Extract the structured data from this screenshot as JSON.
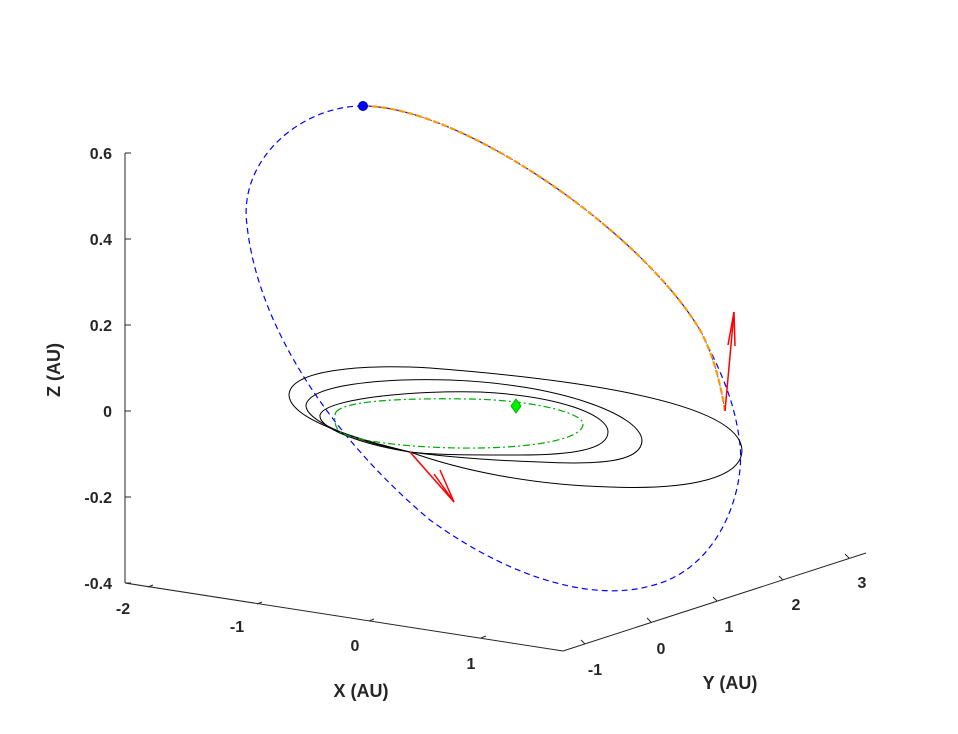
{
  "chart_data": {
    "type": "line",
    "view": "3d",
    "grid": false,
    "legend": "none",
    "axes": {
      "x": {
        "label": "X (AU)",
        "ticks": [
          "-2",
          "-1",
          "0",
          "1"
        ],
        "range": [
          -2.2,
          1.8
        ]
      },
      "y": {
        "label": "Y (AU)",
        "ticks": [
          "-1",
          "0",
          "1",
          "2",
          "3"
        ],
        "range": [
          -1.3,
          3.3
        ]
      },
      "z": {
        "label": "Z (AU)",
        "ticks": [
          "0.6",
          "0.4",
          "0.2",
          "0",
          "-0.2",
          "-0.4"
        ],
        "range": [
          -0.4,
          0.6
        ]
      }
    },
    "series": [
      {
        "style": "dashed",
        "color": "#0000ff"
      },
      {
        "style": "dashed",
        "color": "#ffa500"
      },
      {
        "style": "solid",
        "color": "#000000"
      },
      {
        "style": "dash-dot",
        "color": "#00aa00"
      }
    ],
    "markers": [
      {
        "shape": "circle",
        "color": "#0000ff"
      },
      {
        "shape": "diamond",
        "color": "#00ee00"
      }
    ],
    "vectors": [
      {
        "color": "#ff0000"
      },
      {
        "color": "#ff0000"
      }
    ]
  }
}
